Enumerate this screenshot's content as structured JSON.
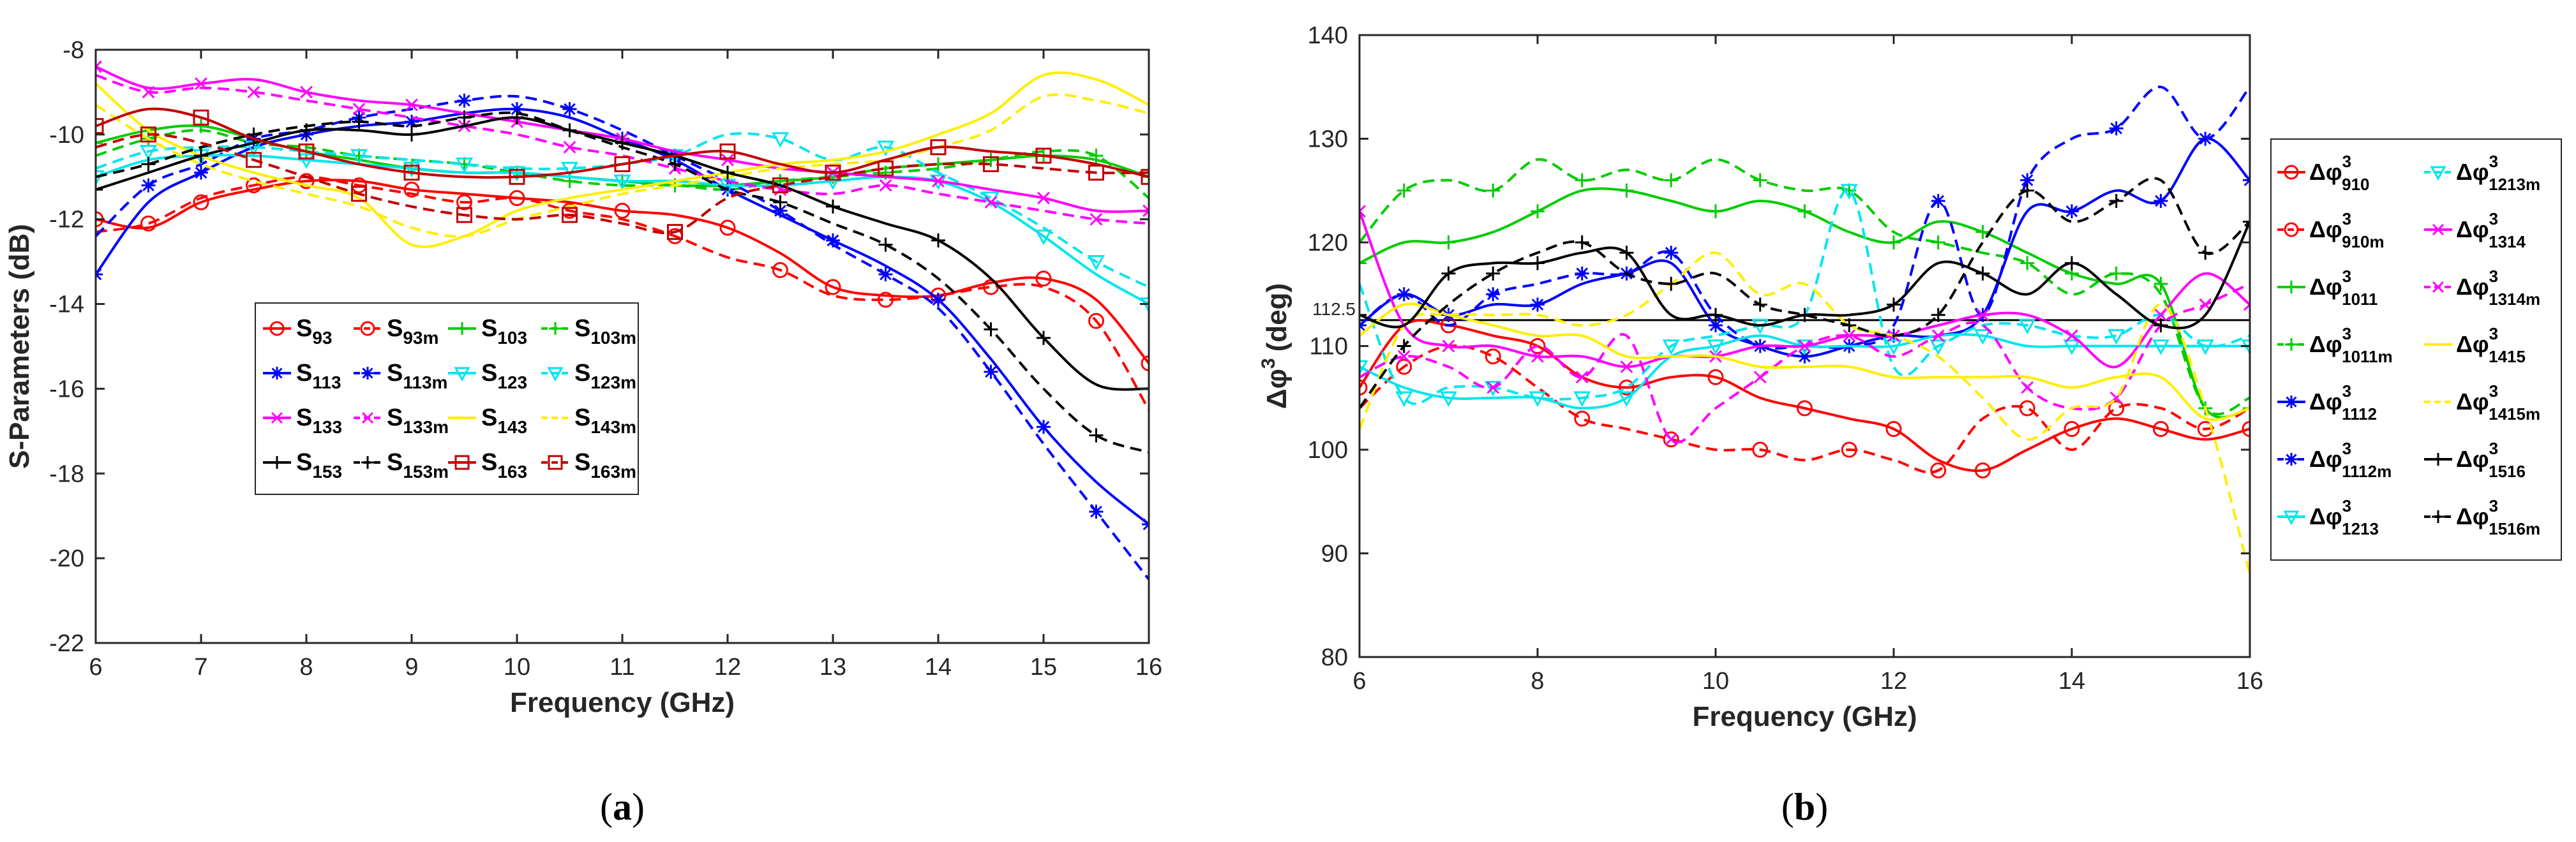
{
  "chart_data": [
    {
      "id": "a",
      "type": "line",
      "caption": "a",
      "xlabel": "Frequency (GHz)",
      "ylabel": "S-Parameters (dB)",
      "xlim": [
        6,
        16
      ],
      "ylim": [
        -22,
        -8
      ],
      "xticks": [
        6,
        7,
        8,
        9,
        10,
        11,
        12,
        13,
        14,
        15,
        16
      ],
      "yticks": [
        -22,
        -20,
        -18,
        -16,
        -14,
        -12,
        -10,
        -8
      ],
      "x": [
        6,
        6.5,
        7,
        7.5,
        8,
        8.5,
        9,
        9.5,
        10,
        10.5,
        11,
        11.5,
        12,
        12.5,
        13,
        13.5,
        14,
        14.5,
        15,
        15.5,
        16
      ],
      "legend_location": "center",
      "series": [
        {
          "name": "S93",
          "base": "S",
          "sub": "93",
          "color": "#ff0000",
          "dash": "solid",
          "marker": "circle",
          "values": [
            -12,
            -12.2,
            -11.6,
            -11.3,
            -11.1,
            -11.1,
            -11.3,
            -11.4,
            -11.5,
            -11.6,
            -11.8,
            -11.9,
            -12.2,
            -12.8,
            -13.6,
            -13.8,
            -13.8,
            -13.5,
            -13.4,
            -13.9,
            -15.4
          ]
        },
        {
          "name": "S93m",
          "base": "S",
          "sub": "93m",
          "color": "#ff0000",
          "dash": "dash",
          "marker": "circle",
          "values": [
            -12.3,
            -12.1,
            -11.5,
            -11.2,
            -11,
            -11.2,
            -11.4,
            -11.6,
            -11.5,
            -11.8,
            -12,
            -12.4,
            -12.9,
            -13.2,
            -13.8,
            -13.9,
            -13.8,
            -13.6,
            -13.6,
            -14.4,
            -16.5
          ]
        },
        {
          "name": "S103",
          "base": "S",
          "sub": "103",
          "color": "#00cc00",
          "dash": "solid",
          "marker": "plus",
          "values": [
            -10.2,
            -9.9,
            -9.8,
            -10.1,
            -10.4,
            -10.6,
            -10.8,
            -10.9,
            -10.9,
            -11,
            -11.1,
            -11.2,
            -11.2,
            -11.1,
            -11,
            -10.8,
            -10.7,
            -10.6,
            -10.5,
            -10.6,
            -11
          ]
        },
        {
          "name": "S103m",
          "base": "S",
          "sub": "103m",
          "color": "#00cc00",
          "dash": "dash",
          "marker": "plus",
          "values": [
            -10.5,
            -10.1,
            -9.9,
            -10.2,
            -10.3,
            -10.5,
            -10.6,
            -10.7,
            -10.9,
            -11.1,
            -11.2,
            -11.2,
            -11.3,
            -11.1,
            -11,
            -10.9,
            -10.8,
            -10.6,
            -10.4,
            -10.5,
            -11.5
          ]
        },
        {
          "name": "S113",
          "base": "S",
          "sub": "113",
          "color": "#0000ff",
          "dash": "solid",
          "marker": "star",
          "values": [
            -13.3,
            -11.6,
            -10.9,
            -10.3,
            -10,
            -9.8,
            -9.7,
            -9.5,
            -9.4,
            -9.6,
            -10.1,
            -10.6,
            -11.3,
            -11.9,
            -12.5,
            -13.1,
            -13.9,
            -15.3,
            -16.9,
            -18.2,
            -19.2
          ]
        },
        {
          "name": "S113m",
          "base": "S",
          "sub": "113m",
          "color": "#0000ff",
          "dash": "dash",
          "marker": "star",
          "values": [
            -12.4,
            -11.2,
            -10.7,
            -10.1,
            -9.9,
            -9.6,
            -9.4,
            -9.2,
            -9.1,
            -9.4,
            -9.9,
            -10.5,
            -11.1,
            -11.8,
            -12.6,
            -13.3,
            -14.1,
            -15.6,
            -17.3,
            -18.9,
            -20.5
          ]
        },
        {
          "name": "S123",
          "base": "S",
          "sub": "123",
          "color": "#00e5ee",
          "dash": "solid",
          "marker": "triangle-down",
          "values": [
            -11,
            -10.6,
            -10.5,
            -10.5,
            -10.6,
            -10.7,
            -10.8,
            -10.9,
            -10.9,
            -11,
            -11.1,
            -11.1,
            -11.2,
            -11.2,
            -11.1,
            -11,
            -11.1,
            -11.6,
            -12.4,
            -13.3,
            -14
          ]
        },
        {
          "name": "S123m",
          "base": "S",
          "sub": "123m",
          "color": "#00e5ee",
          "dash": "dash",
          "marker": "triangle-down",
          "values": [
            -10.8,
            -10.4,
            -10.3,
            -10.3,
            -10.4,
            -10.5,
            -10.6,
            -10.7,
            -10.8,
            -10.8,
            -10.7,
            -10.5,
            -10,
            -10.1,
            -10.6,
            -10.3,
            -10.9,
            -11.5,
            -12.2,
            -13,
            -13.6
          ]
        },
        {
          "name": "S133",
          "base": "S",
          "sub": "133",
          "color": "#ff00ff",
          "dash": "solid",
          "marker": "x",
          "values": [
            -8.4,
            -8.9,
            -8.8,
            -8.7,
            -9,
            -9.2,
            -9.3,
            -9.5,
            -9.7,
            -9.9,
            -10.1,
            -10.4,
            -10.6,
            -10.8,
            -10.9,
            -11,
            -11.1,
            -11.3,
            -11.5,
            -11.8,
            -11.8
          ]
        },
        {
          "name": "S133m",
          "base": "S",
          "sub": "133m",
          "color": "#ff00ff",
          "dash": "dash",
          "marker": "x",
          "values": [
            -8.6,
            -9,
            -8.9,
            -9,
            -9.2,
            -9.4,
            -9.6,
            -9.8,
            -10,
            -10.3,
            -10.5,
            -10.8,
            -11.1,
            -11.3,
            -11.4,
            -11.2,
            -11.4,
            -11.6,
            -11.8,
            -12,
            -12.1
          ]
        },
        {
          "name": "S143",
          "base": "S",
          "sub": "143",
          "color": "#ffee00",
          "dash": "solid",
          "marker": "none",
          "values": [
            -8.8,
            -9.9,
            -10.5,
            -10.9,
            -11.2,
            -11.5,
            -12.6,
            -12.4,
            -11.8,
            -11.5,
            -11.3,
            -11.1,
            -10.9,
            -10.7,
            -10.6,
            -10.4,
            -10,
            -9.5,
            -8.6,
            -8.7,
            -9.3
          ]
        },
        {
          "name": "S143m",
          "base": "S",
          "sub": "143m",
          "color": "#ffee00",
          "dash": "dash",
          "marker": "none",
          "values": [
            -9.3,
            -10.1,
            -10.7,
            -11.1,
            -11.4,
            -11.7,
            -12.2,
            -12.4,
            -12,
            -11.7,
            -11.4,
            -11.2,
            -11,
            -10.8,
            -10.7,
            -10.6,
            -10.3,
            -9.9,
            -9.1,
            -9.2,
            -9.5
          ]
        },
        {
          "name": "S153",
          "base": "S",
          "sub": "153",
          "color": "#000000",
          "dash": "solid",
          "marker": "plus",
          "values": [
            -11.3,
            -10.9,
            -10.5,
            -10.2,
            -9.9,
            -9.9,
            -10,
            -9.8,
            -9.6,
            -9.9,
            -10.2,
            -10.5,
            -10.9,
            -11.2,
            -11.7,
            -12.1,
            -12.5,
            -13.4,
            -14.8,
            -15.9,
            -16
          ]
        },
        {
          "name": "S153m",
          "base": "S",
          "sub": "153m",
          "color": "#000000",
          "dash": "dash",
          "marker": "plus",
          "values": [
            -11,
            -10.7,
            -10.3,
            -10,
            -9.8,
            -9.7,
            -9.8,
            -9.6,
            -9.5,
            -9.9,
            -10.3,
            -10.7,
            -11.3,
            -11.6,
            -12.1,
            -12.6,
            -13.4,
            -14.6,
            -16,
            -17.1,
            -17.5
          ]
        },
        {
          "name": "S163",
          "base": "S",
          "sub": "163",
          "color": "#c00000",
          "dash": "solid",
          "marker": "square",
          "values": [
            -9.8,
            -9.4,
            -9.6,
            -10.1,
            -10.4,
            -10.7,
            -10.9,
            -11,
            -11,
            -10.9,
            -10.7,
            -10.5,
            -10.4,
            -10.7,
            -10.9,
            -10.6,
            -10.3,
            -10.4,
            -10.5,
            -10.7,
            -11
          ]
        },
        {
          "name": "S163m",
          "base": "S",
          "sub": "163m",
          "color": "#c00000",
          "dash": "dash",
          "marker": "square",
          "values": [
            -10.3,
            -10,
            -10.2,
            -10.6,
            -11,
            -11.4,
            -11.7,
            -11.9,
            -12,
            -11.9,
            -12.1,
            -12.3,
            -11.5,
            -11.2,
            -11,
            -10.8,
            -10.7,
            -10.7,
            -10.8,
            -10.9,
            -10.9
          ]
        }
      ]
    },
    {
      "id": "b",
      "type": "line",
      "caption": "b",
      "xlabel": "Frequency (GHz)",
      "ylabel_base": "Δφ",
      "ylabel_sup": "3",
      "ylabel_unit": "(deg)",
      "xlim": [
        6,
        16
      ],
      "ylim": [
        80,
        140
      ],
      "xticks": [
        6,
        8,
        10,
        12,
        14,
        16
      ],
      "yticks": [
        80,
        90,
        100,
        110,
        120,
        130,
        140
      ],
      "x": [
        6,
        6.5,
        7,
        7.5,
        8,
        8.5,
        9,
        9.5,
        10,
        10.5,
        11,
        11.5,
        12,
        12.5,
        13,
        13.5,
        14,
        14.5,
        15,
        15.5,
        16
      ],
      "reference_line": {
        "value": 112.5,
        "label": "112.5"
      },
      "legend_location": "outside-right",
      "series": [
        {
          "name": "Δφ3_910",
          "base": "Δφ",
          "sup": "3",
          "sub": "910",
          "color": "#ff0000",
          "dash": "solid",
          "marker": "circle",
          "values": [
            106,
            112,
            112,
            111,
            110,
            107,
            106,
            107,
            107,
            105,
            104,
            103,
            102,
            99,
            98,
            100,
            102,
            103,
            102,
            101,
            102
          ]
        },
        {
          "name": "Δφ3_910m",
          "base": "Δφ",
          "sup": "3",
          "sub": "910m",
          "color": "#ff0000",
          "dash": "dash",
          "marker": "circle",
          "values": [
            104,
            108,
            110,
            109,
            106,
            103,
            102,
            101,
            100,
            100,
            99,
            100,
            99,
            98,
            103,
            104,
            100,
            104,
            104,
            102,
            104
          ]
        },
        {
          "name": "Δφ3_1011",
          "base": "Δφ",
          "sup": "3",
          "sub": "1011",
          "color": "#00cc00",
          "dash": "solid",
          "marker": "plus",
          "values": [
            118,
            120,
            120,
            121,
            123,
            125,
            125,
            124,
            123,
            124,
            123,
            121,
            120,
            122,
            121,
            119,
            117,
            116,
            116,
            104,
            104
          ]
        },
        {
          "name": "Δφ3_1011m",
          "base": "Δφ",
          "sup": "3",
          "sub": "1011m",
          "color": "#00cc00",
          "dash": "dash",
          "marker": "plus",
          "values": [
            120,
            125,
            126,
            125,
            128,
            126,
            127,
            126,
            128,
            126,
            125,
            125,
            121,
            120,
            119,
            118,
            115,
            117,
            115,
            104,
            105
          ]
        },
        {
          "name": "Δφ3_1112",
          "base": "Δφ",
          "sup": "3",
          "sub": "1112",
          "color": "#0000ff",
          "dash": "solid",
          "marker": "star",
          "values": [
            112,
            115,
            113,
            114,
            114,
            116,
            117,
            118,
            112,
            110,
            109,
            110,
            111,
            111,
            113,
            123,
            123,
            125,
            124,
            130,
            126
          ]
        },
        {
          "name": "Δφ3_1112m",
          "base": "Δφ",
          "sup": "3",
          "sub": "1112m",
          "color": "#0000ff",
          "dash": "dash",
          "marker": "star",
          "values": [
            112,
            115,
            112,
            115,
            116,
            117,
            117,
            119,
            113,
            110,
            110,
            110,
            112,
            124,
            113,
            126,
            130,
            131,
            135,
            130,
            135
          ]
        },
        {
          "name": "Δφ3_1213",
          "base": "Δφ",
          "sup": "3",
          "sub": "1213",
          "color": "#00e5ee",
          "dash": "solid",
          "marker": "triangle-down",
          "values": [
            108,
            106,
            105,
            105,
            105,
            104,
            105,
            109,
            110,
            111,
            110,
            110,
            110,
            111,
            111,
            110,
            110,
            110,
            110,
            110,
            110
          ]
        },
        {
          "name": "Δφ3_1213m",
          "base": "Δφ",
          "sup": "3",
          "sub": "1213m",
          "color": "#00e5ee",
          "dash": "dash",
          "marker": "triangle-down",
          "values": [
            116,
            105,
            106,
            106,
            105,
            105,
            106,
            110,
            111,
            112,
            113,
            125,
            108,
            110,
            112,
            112,
            111,
            111,
            113,
            110,
            111
          ]
        },
        {
          "name": "Δφ3_1314",
          "base": "Δφ",
          "sup": "3",
          "sub": "1314",
          "color": "#ff00ff",
          "dash": "solid",
          "marker": "x",
          "values": [
            123,
            112,
            110,
            110,
            109,
            109,
            108,
            109,
            109,
            110,
            110,
            111,
            111,
            112,
            113,
            113,
            111,
            108,
            113,
            117,
            114
          ]
        },
        {
          "name": "Δφ3_1314m",
          "base": "Δφ",
          "sup": "3",
          "sub": "1314m",
          "color": "#ff00ff",
          "dash": "dash",
          "marker": "x",
          "values": [
            107,
            109,
            108,
            106,
            110,
            107,
            111,
            101,
            104,
            107,
            110,
            111,
            109,
            111,
            112,
            106,
            104,
            105,
            112,
            114,
            116
          ]
        },
        {
          "name": "Δφ3_1415",
          "base": "Δφ",
          "sup": "3",
          "sub": "1415",
          "color": "#ffee00",
          "dash": "solid",
          "marker": "none",
          "values": [
            111,
            114,
            113,
            112,
            111,
            111,
            109,
            109,
            109,
            108,
            108,
            108,
            107,
            107,
            107,
            107,
            106,
            107,
            107,
            103,
            104
          ]
        },
        {
          "name": "Δφ3_1415m",
          "base": "Δφ",
          "sup": "3",
          "sub": "1415m",
          "color": "#ffee00",
          "dash": "dash",
          "marker": "none",
          "values": [
            102,
            112,
            113,
            113,
            113,
            112,
            113,
            116,
            119,
            115,
            116,
            112,
            111,
            109,
            105,
            101,
            104,
            105,
            114,
            104,
            88
          ]
        },
        {
          "name": "Δφ3_1516",
          "base": "Δφ",
          "sup": "3",
          "sub": "1516",
          "color": "#000000",
          "dash": "solid",
          "marker": "plus",
          "values": [
            113,
            112,
            117,
            118,
            118,
            119,
            119,
            113,
            113,
            112,
            113,
            113,
            114,
            118,
            117,
            115,
            118,
            115,
            112,
            113,
            122
          ]
        },
        {
          "name": "Δφ3_1516m",
          "base": "Δφ",
          "sup": "3",
          "sub": "1516m",
          "color": "#000000",
          "dash": "dash",
          "marker": "plus",
          "values": [
            104,
            110,
            114,
            117,
            119,
            120,
            117,
            116,
            117,
            114,
            113,
            112,
            111,
            113,
            120,
            125,
            122,
            124,
            126,
            119,
            122
          ]
        }
      ]
    }
  ]
}
